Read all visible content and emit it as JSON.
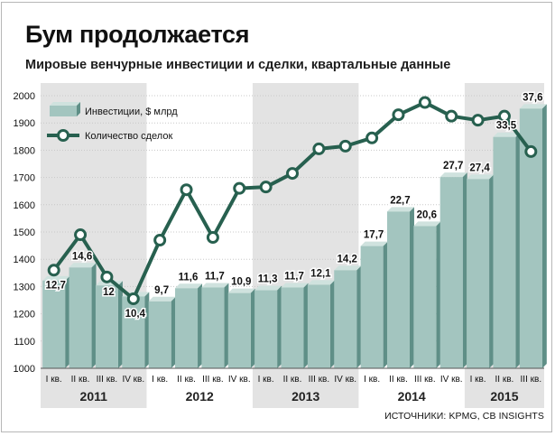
{
  "title": "Бум продолжается",
  "subtitle": "Мировые венчурные инвестиции и сделки, квартальные данные",
  "source": "ИСТОЧНИКИ: KPMG, CB INSIGHTS",
  "legend": {
    "bars_label": "Инвестиции, $ млрд",
    "line_label": "Количество сделок"
  },
  "colors": {
    "bar_front": "#a3c5bf",
    "bar_top": "#cfe2de",
    "bar_side": "#5f8f87",
    "line": "#27604f",
    "marker_fill": "#ffffff",
    "year_band": "#e3e3e3",
    "grid": "#c8c8c8"
  },
  "chart_data": {
    "type": "bar+line",
    "title": "Бум продолжается",
    "subtitle": "Мировые венчурные инвестиции и сделки, квартальные данные",
    "categories": [
      "I кв.",
      "II кв.",
      "III кв.",
      "IV кв.",
      "I кв.",
      "II кв.",
      "III кв.",
      "IV кв.",
      "I кв.",
      "II кв.",
      "III кв.",
      "IV кв.",
      "I кв.",
      "II кв.",
      "III кв.",
      "IV кв.",
      "I кв.",
      "II кв.",
      "III кв."
    ],
    "years": [
      {
        "label": "2011",
        "start": 0,
        "count": 4
      },
      {
        "label": "2012",
        "start": 4,
        "count": 4
      },
      {
        "label": "2013",
        "start": 8,
        "count": 4
      },
      {
        "label": "2014",
        "start": 12,
        "count": 4
      },
      {
        "label": "2015",
        "start": 16,
        "count": 3
      }
    ],
    "series": [
      {
        "name": "Инвестиции, $ млрд",
        "type": "bar",
        "values": [
          12.7,
          14.6,
          12,
          10.4,
          9.7,
          11.6,
          11.7,
          10.9,
          11.3,
          11.7,
          12.1,
          14.2,
          17.7,
          22.7,
          20.6,
          27.7,
          27.4,
          33.5,
          37.6
        ],
        "labels": [
          "12,7",
          "14,6",
          "12",
          "10,4",
          "9,7",
          "11,6",
          "11,7",
          "10,9",
          "11,3",
          "11,7",
          "12,1",
          "14,2",
          "17,7",
          "22,7",
          "20,6",
          "27,7",
          "27,4",
          "33,5",
          "37,6"
        ]
      },
      {
        "name": "Количество сделок",
        "type": "line",
        "values": [
          1360,
          1490,
          1335,
          1255,
          1470,
          1655,
          1480,
          1660,
          1665,
          1715,
          1805,
          1815,
          1845,
          1930,
          1975,
          1925,
          1910,
          1925,
          1795
        ]
      }
    ],
    "yaxis": {
      "min": 1000,
      "max": 2000,
      "ticks": [
        2000,
        1900,
        1800,
        1700,
        1600,
        1500,
        1400,
        1300,
        1200,
        1100,
        1000
      ]
    },
    "grid": true,
    "legend_position": "top-left"
  }
}
